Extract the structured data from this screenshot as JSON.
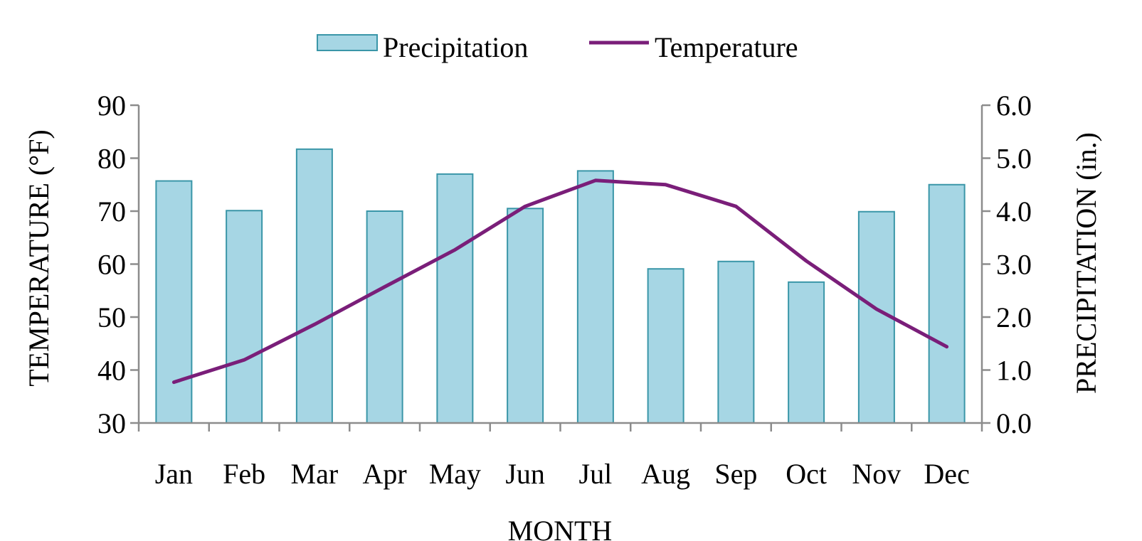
{
  "chart_data": {
    "type": "bar+line",
    "categories": [
      "Jan",
      "Feb",
      "Mar",
      "Apr",
      "May",
      "Jun",
      "Jul",
      "Aug",
      "Sep",
      "Oct",
      "Nov",
      "Dec"
    ],
    "series": [
      {
        "name": "Precipitation",
        "type": "bar",
        "axis": "right",
        "values": [
          4.57,
          4.01,
          5.17,
          4.0,
          4.7,
          4.05,
          4.76,
          2.91,
          3.05,
          2.66,
          3.99,
          4.5
        ]
      },
      {
        "name": "Temperature",
        "type": "line",
        "axis": "left",
        "values": [
          37.7,
          41.9,
          48.6,
          55.7,
          62.7,
          70.9,
          75.8,
          75.0,
          70.9,
          60.6,
          51.5,
          44.4
        ]
      }
    ],
    "xlabel": "MONTH",
    "ylabel_left": "TEMPERATURE (°F)",
    "ylabel_right": "PRECIPITATION (in.)",
    "ylim_left": [
      30,
      90
    ],
    "ylim_right": [
      0,
      6
    ],
    "yticks_left": [
      "30",
      "40",
      "50",
      "60",
      "70",
      "80",
      "90"
    ],
    "yticks_right": [
      "0.0",
      "1.0",
      "2.0",
      "3.0",
      "4.0",
      "5.0",
      "6.0"
    ],
    "grid": false,
    "legend_position": "top-center",
    "colors": {
      "bar_fill": "#a6d6e4",
      "bar_stroke": "#3a96a8",
      "line": "#7a1e79",
      "axis": "#8c8c8c"
    }
  }
}
